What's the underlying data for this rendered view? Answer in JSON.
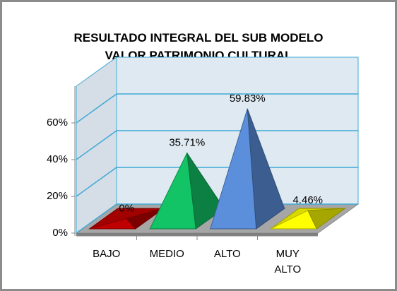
{
  "chart_data": {
    "type": "pyramid3d",
    "title": "RESULTADO INTEGRAL DEL SUB MODELO\nVALOR PATRIMONIO CULTURAL",
    "categories": [
      "BAJO",
      "MEDIO",
      "ALTO",
      "MUY\nALTO"
    ],
    "values": [
      0,
      35.71,
      59.83,
      4.46
    ],
    "value_labels": [
      "0%",
      "35.71%",
      "59.83%",
      "4.46%"
    ],
    "colors": [
      "#c00000",
      "#12c466",
      "#5b8fdc",
      "#ffff00"
    ],
    "ylim": [
      0,
      80
    ],
    "yticks": [
      {
        "value": 0,
        "label": "0%"
      },
      {
        "value": 20,
        "label": "20%"
      },
      {
        "value": 40,
        "label": "40%"
      },
      {
        "value": 60,
        "label": "60%"
      }
    ],
    "grid": true
  }
}
